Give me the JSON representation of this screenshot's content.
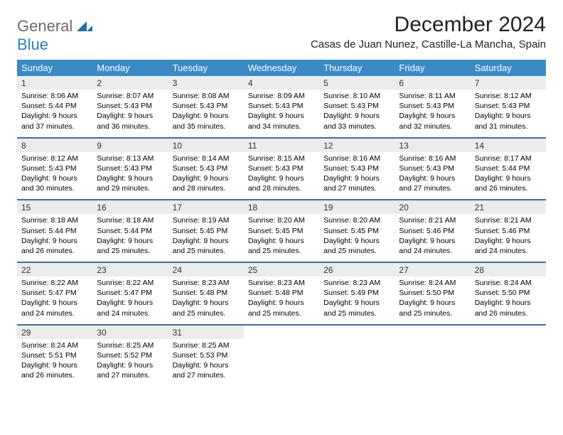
{
  "logo": {
    "part1": "General",
    "part2": "Blue"
  },
  "title": "December 2024",
  "location": "Casas de Juan Nunez, Castille-La Mancha, Spain",
  "colors": {
    "header_bg": "#3a8ac6",
    "header_fg": "#ffffff",
    "daynum_bg": "#ececec",
    "sep": "#3a6ea8",
    "logo_gray": "#6b6b6b",
    "logo_blue": "#2a7fbf"
  },
  "dow": [
    "Sunday",
    "Monday",
    "Tuesday",
    "Wednesday",
    "Thursday",
    "Friday",
    "Saturday"
  ],
  "weeks": [
    [
      {
        "n": "1",
        "sr": "Sunrise: 8:06 AM",
        "ss": "Sunset: 5:44 PM",
        "d1": "Daylight: 9 hours",
        "d2": "and 37 minutes."
      },
      {
        "n": "2",
        "sr": "Sunrise: 8:07 AM",
        "ss": "Sunset: 5:43 PM",
        "d1": "Daylight: 9 hours",
        "d2": "and 36 minutes."
      },
      {
        "n": "3",
        "sr": "Sunrise: 8:08 AM",
        "ss": "Sunset: 5:43 PM",
        "d1": "Daylight: 9 hours",
        "d2": "and 35 minutes."
      },
      {
        "n": "4",
        "sr": "Sunrise: 8:09 AM",
        "ss": "Sunset: 5:43 PM",
        "d1": "Daylight: 9 hours",
        "d2": "and 34 minutes."
      },
      {
        "n": "5",
        "sr": "Sunrise: 8:10 AM",
        "ss": "Sunset: 5:43 PM",
        "d1": "Daylight: 9 hours",
        "d2": "and 33 minutes."
      },
      {
        "n": "6",
        "sr": "Sunrise: 8:11 AM",
        "ss": "Sunset: 5:43 PM",
        "d1": "Daylight: 9 hours",
        "d2": "and 32 minutes."
      },
      {
        "n": "7",
        "sr": "Sunrise: 8:12 AM",
        "ss": "Sunset: 5:43 PM",
        "d1": "Daylight: 9 hours",
        "d2": "and 31 minutes."
      }
    ],
    [
      {
        "n": "8",
        "sr": "Sunrise: 8:12 AM",
        "ss": "Sunset: 5:43 PM",
        "d1": "Daylight: 9 hours",
        "d2": "and 30 minutes."
      },
      {
        "n": "9",
        "sr": "Sunrise: 8:13 AM",
        "ss": "Sunset: 5:43 PM",
        "d1": "Daylight: 9 hours",
        "d2": "and 29 minutes."
      },
      {
        "n": "10",
        "sr": "Sunrise: 8:14 AM",
        "ss": "Sunset: 5:43 PM",
        "d1": "Daylight: 9 hours",
        "d2": "and 28 minutes."
      },
      {
        "n": "11",
        "sr": "Sunrise: 8:15 AM",
        "ss": "Sunset: 5:43 PM",
        "d1": "Daylight: 9 hours",
        "d2": "and 28 minutes."
      },
      {
        "n": "12",
        "sr": "Sunrise: 8:16 AM",
        "ss": "Sunset: 5:43 PM",
        "d1": "Daylight: 9 hours",
        "d2": "and 27 minutes."
      },
      {
        "n": "13",
        "sr": "Sunrise: 8:16 AM",
        "ss": "Sunset: 5:43 PM",
        "d1": "Daylight: 9 hours",
        "d2": "and 27 minutes."
      },
      {
        "n": "14",
        "sr": "Sunrise: 8:17 AM",
        "ss": "Sunset: 5:44 PM",
        "d1": "Daylight: 9 hours",
        "d2": "and 26 minutes."
      }
    ],
    [
      {
        "n": "15",
        "sr": "Sunrise: 8:18 AM",
        "ss": "Sunset: 5:44 PM",
        "d1": "Daylight: 9 hours",
        "d2": "and 26 minutes."
      },
      {
        "n": "16",
        "sr": "Sunrise: 8:18 AM",
        "ss": "Sunset: 5:44 PM",
        "d1": "Daylight: 9 hours",
        "d2": "and 25 minutes."
      },
      {
        "n": "17",
        "sr": "Sunrise: 8:19 AM",
        "ss": "Sunset: 5:45 PM",
        "d1": "Daylight: 9 hours",
        "d2": "and 25 minutes."
      },
      {
        "n": "18",
        "sr": "Sunrise: 8:20 AM",
        "ss": "Sunset: 5:45 PM",
        "d1": "Daylight: 9 hours",
        "d2": "and 25 minutes."
      },
      {
        "n": "19",
        "sr": "Sunrise: 8:20 AM",
        "ss": "Sunset: 5:45 PM",
        "d1": "Daylight: 9 hours",
        "d2": "and 25 minutes."
      },
      {
        "n": "20",
        "sr": "Sunrise: 8:21 AM",
        "ss": "Sunset: 5:46 PM",
        "d1": "Daylight: 9 hours",
        "d2": "and 24 minutes."
      },
      {
        "n": "21",
        "sr": "Sunrise: 8:21 AM",
        "ss": "Sunset: 5:46 PM",
        "d1": "Daylight: 9 hours",
        "d2": "and 24 minutes."
      }
    ],
    [
      {
        "n": "22",
        "sr": "Sunrise: 8:22 AM",
        "ss": "Sunset: 5:47 PM",
        "d1": "Daylight: 9 hours",
        "d2": "and 24 minutes."
      },
      {
        "n": "23",
        "sr": "Sunrise: 8:22 AM",
        "ss": "Sunset: 5:47 PM",
        "d1": "Daylight: 9 hours",
        "d2": "and 24 minutes."
      },
      {
        "n": "24",
        "sr": "Sunrise: 8:23 AM",
        "ss": "Sunset: 5:48 PM",
        "d1": "Daylight: 9 hours",
        "d2": "and 25 minutes."
      },
      {
        "n": "25",
        "sr": "Sunrise: 8:23 AM",
        "ss": "Sunset: 5:48 PM",
        "d1": "Daylight: 9 hours",
        "d2": "and 25 minutes."
      },
      {
        "n": "26",
        "sr": "Sunrise: 8:23 AM",
        "ss": "Sunset: 5:49 PM",
        "d1": "Daylight: 9 hours",
        "d2": "and 25 minutes."
      },
      {
        "n": "27",
        "sr": "Sunrise: 8:24 AM",
        "ss": "Sunset: 5:50 PM",
        "d1": "Daylight: 9 hours",
        "d2": "and 25 minutes."
      },
      {
        "n": "28",
        "sr": "Sunrise: 8:24 AM",
        "ss": "Sunset: 5:50 PM",
        "d1": "Daylight: 9 hours",
        "d2": "and 26 minutes."
      }
    ],
    [
      {
        "n": "29",
        "sr": "Sunrise: 8:24 AM",
        "ss": "Sunset: 5:51 PM",
        "d1": "Daylight: 9 hours",
        "d2": "and 26 minutes."
      },
      {
        "n": "30",
        "sr": "Sunrise: 8:25 AM",
        "ss": "Sunset: 5:52 PM",
        "d1": "Daylight: 9 hours",
        "d2": "and 27 minutes."
      },
      {
        "n": "31",
        "sr": "Sunrise: 8:25 AM",
        "ss": "Sunset: 5:53 PM",
        "d1": "Daylight: 9 hours",
        "d2": "and 27 minutes."
      },
      null,
      null,
      null,
      null
    ]
  ]
}
